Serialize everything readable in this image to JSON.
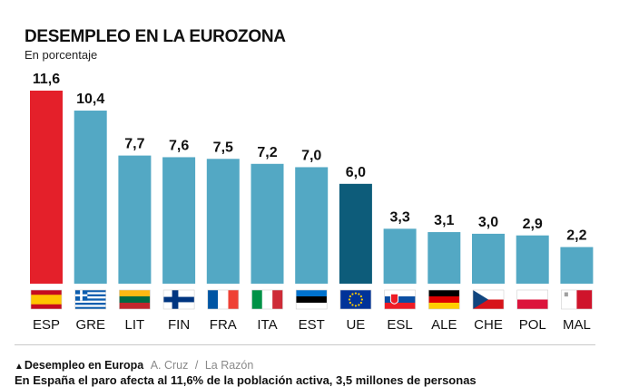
{
  "title": "DESEMPLEO EN LA EUROZONA",
  "subtitle": "En porcentaje",
  "caption": {
    "marker": "▲",
    "label": "Desempleo en Europa",
    "author": "A. Cruz",
    "separator": "/",
    "outlet": "La Razón"
  },
  "bottom_text": "En España el paro afecta al 11,6% de la población activa, 3,5 millones de personas",
  "colors": {
    "highlight": "#e4202a",
    "default_bar": "#53a8c4",
    "eu_bar": "#0d5c7a",
    "text": "#111111"
  },
  "chart_data": {
    "type": "bar",
    "title": "DESEMPLEO EN LA EUROZONA",
    "subtitle": "En porcentaje",
    "ylabel": "",
    "xlabel": "",
    "ylim": [
      0,
      12
    ],
    "grid": false,
    "categories": [
      "ESP",
      "GRE",
      "LIT",
      "FIN",
      "FRA",
      "ITA",
      "EST",
      "UE",
      "ESL",
      "ALE",
      "CHE",
      "POL",
      "MAL"
    ],
    "values": [
      11.6,
      10.4,
      7.7,
      7.6,
      7.5,
      7.2,
      7.0,
      6.0,
      3.3,
      3.1,
      3.0,
      2.9,
      2.2
    ],
    "value_labels": [
      "11,6",
      "10,4",
      "7,7",
      "7,6",
      "7,5",
      "7,2",
      "7,0",
      "6,0",
      "3,3",
      "3,1",
      "3,0",
      "2,9",
      "2,2"
    ],
    "bar_colors": [
      "#e4202a",
      "#53a8c4",
      "#53a8c4",
      "#53a8c4",
      "#53a8c4",
      "#53a8c4",
      "#53a8c4",
      "#0d5c7a",
      "#53a8c4",
      "#53a8c4",
      "#53a8c4",
      "#53a8c4",
      "#53a8c4"
    ],
    "flags": [
      "spain-flag-icon",
      "greece-flag-icon",
      "lithuania-flag-icon",
      "finland-flag-icon",
      "france-flag-icon",
      "italy-flag-icon",
      "estonia-flag-icon",
      "eu-flag-icon",
      "slovakia-flag-icon",
      "germany-flag-icon",
      "czechia-flag-icon",
      "poland-flag-icon",
      "malta-flag-icon"
    ]
  }
}
